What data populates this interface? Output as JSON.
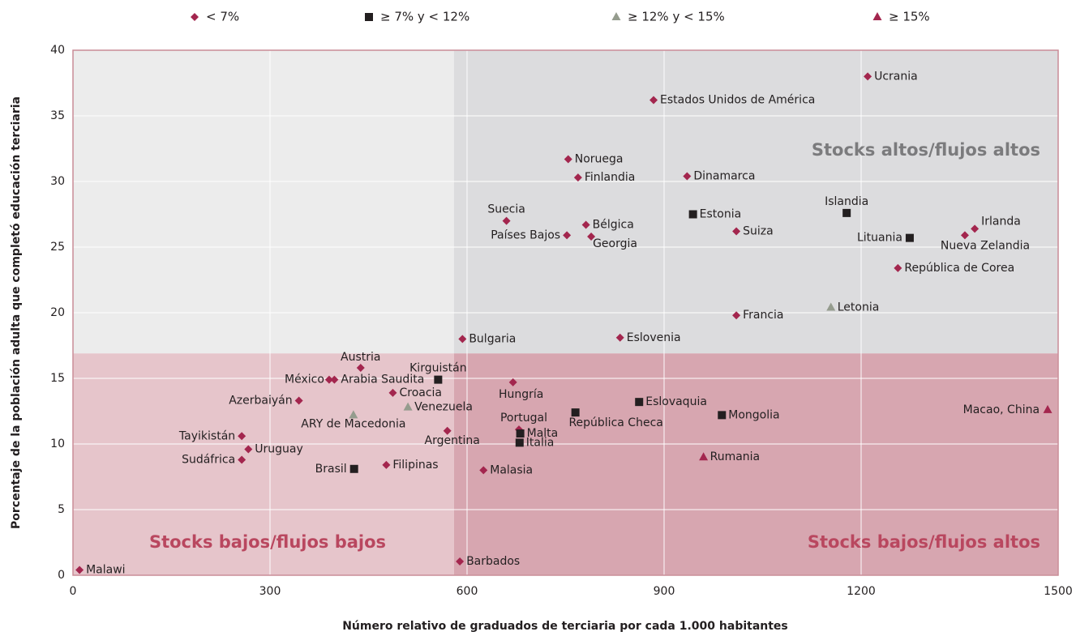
{
  "chart_data": {
    "type": "scatter",
    "xlabel": "Número relativo de graduados de terciaria por cada 1.000 habitantes",
    "ylabel": "Porcentaje de la población adulta que completó educación terciaria",
    "xlim": [
      0,
      1500
    ],
    "ylim": [
      0,
      40
    ],
    "xticks": [
      0,
      300,
      600,
      900,
      1200,
      1500
    ],
    "yticks": [
      0,
      5,
      10,
      15,
      20,
      25,
      30,
      35,
      40
    ],
    "grid": true,
    "legend": "top",
    "x_threshold": 580,
    "y_threshold": 16.9,
    "annotations": [
      "Stocks altos/flujos altos",
      "Stocks bajos/flujos bajos",
      "Stocks bajos/flujos altos"
    ],
    "series": [
      {
        "name": "< 7%",
        "color": "#a3264e",
        "marker": "diamond",
        "labels": [
          "Ucrania",
          "Estados Unidos de América",
          "Noruega",
          "Finlandia",
          "Dinamarca",
          "Suecia",
          "Países Bajos",
          "Bélgica",
          "Georgia",
          "Suiza",
          "Irlanda",
          "Nueva Zelandia",
          "República de Corea",
          "Francia",
          "Eslovenia",
          "Bulgaria",
          "Austria",
          "México",
          "Arabia Saudita",
          "Hungría",
          "Azerbaiyán",
          "Croacia",
          "Argentina",
          "Portugal",
          "Tayikistán",
          "Uruguay",
          "Sudáfrica",
          "Filipinas",
          "Malasia",
          "Barbados",
          "Malawi"
        ],
        "x": [
          1210,
          884,
          754,
          769,
          935,
          660,
          752,
          781,
          789,
          1010,
          1373,
          1358,
          1256,
          1010,
          833,
          593,
          438,
          390,
          398,
          670,
          344,
          487,
          570,
          679,
          257,
          267,
          257,
          477,
          625,
          589,
          10
        ],
        "values": [
          38,
          36.2,
          31.7,
          30.3,
          30.4,
          27,
          25.9,
          26.7,
          25.8,
          26.2,
          26.4,
          25.9,
          23.4,
          19.8,
          18.1,
          18,
          15.8,
          14.9,
          14.9,
          14.7,
          13.3,
          13.9,
          11,
          11.1,
          10.6,
          9.6,
          8.8,
          8.4,
          8,
          1.05,
          0.4
        ]
      },
      {
        "name": "≥ 7% y < 12%",
        "color": "#231f20",
        "marker": "square",
        "labels": [
          "Estonia",
          "Islandia",
          "Lituania",
          "Kirguistán",
          "Eslovaquia",
          "República Checa",
          "Mongolia",
          "Malta",
          "Italia",
          "Brasil"
        ],
        "x": [
          944,
          1178,
          1274,
          556,
          862,
          765,
          988,
          681,
          680,
          428
        ],
        "values": [
          27.5,
          27.6,
          25.7,
          14.9,
          13.2,
          12.4,
          12.2,
          10.8,
          10.1,
          8.1
        ]
      },
      {
        "name": "≥ 12% y < 15%",
        "color": "#959c8e",
        "marker": "triangle",
        "labels": [
          "Letonia",
          "ARY de Macedonia",
          "Venezuela"
        ],
        "x": [
          1154,
          427,
          510
        ],
        "values": [
          20.4,
          12.2,
          12.8
        ]
      },
      {
        "name": "≥ 15%",
        "color": "#a3264e",
        "marker": "triangle",
        "labels": [
          "Macao, China",
          "Rumania"
        ],
        "x": [
          1484,
          960
        ],
        "values": [
          12.6,
          9
        ]
      }
    ]
  }
}
